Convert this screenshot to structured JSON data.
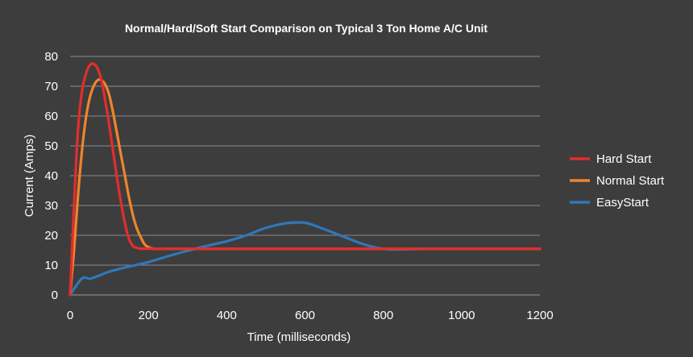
{
  "chart_data": {
    "type": "line",
    "title": "Normal/Hard/Soft Start Comparison on Typical 3 Ton Home A/C Unit",
    "xlabel": "Time (milliseconds)",
    "ylabel": "Current (Amps)",
    "xlim": [
      0,
      1200
    ],
    "ylim": [
      0,
      80
    ],
    "x_ticks": [
      "0",
      "200",
      "400",
      "600",
      "800",
      "1000",
      "1200"
    ],
    "y_ticks": [
      "0",
      "10",
      "20",
      "30",
      "40",
      "50",
      "60",
      "70",
      "80"
    ],
    "grid": "horizontal",
    "legend_position": "right",
    "series": [
      {
        "name": "Hard Start",
        "color": "#e32d2d",
        "x": [
          0,
          10,
          20,
          30,
          40,
          50,
          60,
          70,
          80,
          90,
          100,
          110,
          120,
          130,
          140,
          150,
          160,
          170,
          180,
          200,
          250,
          400,
          600,
          800,
          1000,
          1200
        ],
        "y": [
          0,
          30,
          55,
          68,
          74,
          77,
          77.5,
          76,
          72,
          65,
          57,
          48,
          39,
          31,
          24,
          19,
          16.5,
          15.8,
          15.5,
          15.5,
          15.5,
          15.5,
          15.5,
          15.5,
          15.5,
          15.5
        ]
      },
      {
        "name": "Normal Start",
        "color": "#f0842b",
        "x": [
          0,
          10,
          20,
          30,
          40,
          50,
          60,
          70,
          80,
          90,
          100,
          110,
          120,
          130,
          140,
          150,
          160,
          170,
          180,
          190,
          200,
          210,
          220,
          250,
          400,
          600,
          800,
          1000,
          1200
        ],
        "y": [
          0,
          15,
          33,
          48,
          59,
          66,
          70,
          72,
          72,
          70.5,
          67,
          61,
          54,
          47,
          40,
          33,
          27,
          22.5,
          19.5,
          17,
          16,
          15.6,
          15.5,
          15.5,
          15.5,
          15.5,
          15.5,
          15.5,
          15.5
        ]
      },
      {
        "name": "EasyStart",
        "color": "#2f78b8",
        "x": [
          0,
          15,
          30,
          40,
          50,
          60,
          80,
          100,
          150,
          200,
          250,
          300,
          350,
          400,
          450,
          500,
          550,
          580,
          600,
          620,
          650,
          700,
          750,
          800,
          850,
          900,
          1000,
          1200
        ],
        "y": [
          0,
          3,
          5.5,
          5.8,
          5.4,
          5.8,
          6.8,
          7.8,
          9.5,
          11,
          13,
          14.8,
          16.5,
          18,
          20,
          22.5,
          24,
          24.3,
          24.2,
          23.5,
          22,
          19.5,
          17,
          15.5,
          15.3,
          15.5,
          15.5,
          15.5
        ]
      }
    ]
  }
}
